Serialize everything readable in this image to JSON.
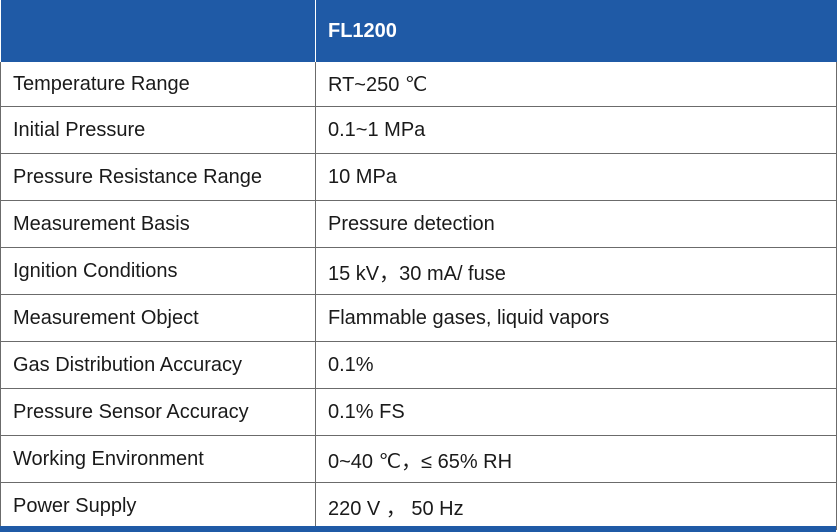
{
  "header": {
    "model": "FL1200"
  },
  "rows": [
    {
      "label": "Temperature Range",
      "value": "RT~250 ℃"
    },
    {
      "label": "Initial Pressure",
      "value": "0.1~1 MPa"
    },
    {
      "label": "Pressure Resistance Range",
      "value": "10 MPa"
    },
    {
      "label": "Measurement Basis",
      "value": "Pressure detection"
    },
    {
      "label": "Ignition Conditions",
      "value": "15 kV，30 mA/ fuse"
    },
    {
      "label": "Measurement Object",
      "value": "Flammable gases, liquid vapors"
    },
    {
      "label": "Gas Distribution Accuracy",
      "value": "0.1%"
    },
    {
      "label": "Pressure Sensor Accuracy",
      "value": "0.1% FS"
    },
    {
      "label": "Working Environment",
      "value": "0~40 ℃，≤ 65% RH"
    },
    {
      "label": "Power Supply",
      "value": "220 V ， 50 Hz"
    }
  ],
  "colors": {
    "header_bg": "#1f5aa6",
    "border": "#6b6b6b"
  }
}
